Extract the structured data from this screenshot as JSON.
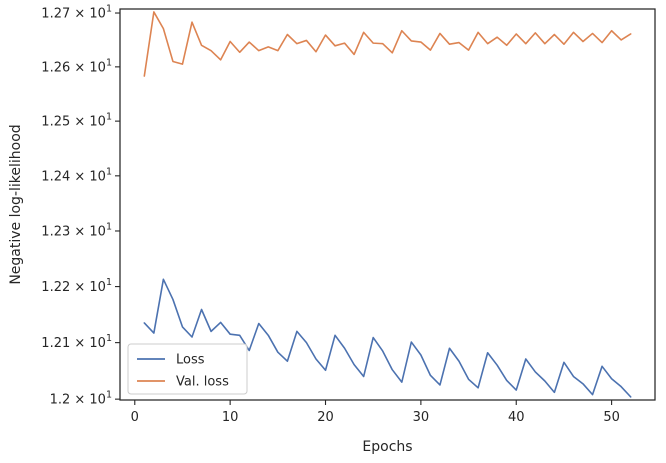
{
  "chart_data": {
    "type": "line",
    "xlabel": "Epochs",
    "ylabel": "Negative log-likelihood",
    "xlim": [
      -1.55,
      54.55
    ],
    "ylim": [
      11.9985,
      12.7075
    ],
    "yscale": "log",
    "xticks": [
      0,
      10,
      20,
      30,
      40,
      50
    ],
    "xtick_labels": [
      "0",
      "10",
      "20",
      "30",
      "40",
      "50"
    ],
    "yticks": [
      12.0,
      12.1,
      12.2,
      12.3,
      12.4,
      12.5,
      12.6,
      12.7
    ],
    "ytick_labels": [
      {
        "mantissa": "1.2",
        "exponent": "1"
      },
      {
        "mantissa": "1.21",
        "exponent": "1"
      },
      {
        "mantissa": "1.22",
        "exponent": "1"
      },
      {
        "mantissa": "1.23",
        "exponent": "1"
      },
      {
        "mantissa": "1.24",
        "exponent": "1"
      },
      {
        "mantissa": "1.25",
        "exponent": "1"
      },
      {
        "mantissa": "1.26",
        "exponent": "1"
      },
      {
        "mantissa": "1.27",
        "exponent": "1"
      }
    ],
    "grid": false,
    "legend_position": "lower-left",
    "x": [
      1,
      2,
      3,
      4,
      5,
      6,
      7,
      8,
      9,
      10,
      11,
      12,
      13,
      14,
      15,
      16,
      17,
      18,
      19,
      20,
      21,
      22,
      23,
      24,
      25,
      26,
      27,
      28,
      29,
      30,
      31,
      32,
      33,
      34,
      35,
      36,
      37,
      38,
      39,
      40,
      41,
      42,
      43,
      44,
      45,
      46,
      47,
      48,
      49,
      50,
      51,
      52
    ],
    "series": [
      {
        "name": "Loss",
        "color": "#4c72b0",
        "values": [
          12.135,
          12.117,
          12.213,
          12.177,
          12.128,
          12.11,
          12.159,
          12.12,
          12.136,
          12.115,
          12.113,
          12.086,
          12.134,
          12.113,
          12.083,
          12.067,
          12.12,
          12.1,
          12.071,
          12.051,
          12.113,
          12.09,
          12.061,
          12.04,
          12.109,
          12.085,
          12.052,
          12.03,
          12.101,
          12.078,
          12.042,
          12.025,
          12.09,
          12.067,
          12.035,
          12.02,
          12.082,
          12.06,
          12.033,
          12.016,
          12.071,
          12.048,
          12.032,
          12.012,
          12.065,
          12.04,
          12.027,
          12.008,
          12.058,
          12.036,
          12.022,
          12.004
        ]
      },
      {
        "name": "Val. loss",
        "color": "#dd8452",
        "values": [
          12.583,
          12.702,
          12.671,
          12.61,
          12.605,
          12.683,
          12.64,
          12.63,
          12.613,
          12.647,
          12.627,
          12.646,
          12.63,
          12.637,
          12.63,
          12.66,
          12.643,
          12.649,
          12.628,
          12.659,
          12.639,
          12.644,
          12.623,
          12.664,
          12.644,
          12.643,
          12.626,
          12.667,
          12.648,
          12.646,
          12.631,
          12.662,
          12.642,
          12.645,
          12.631,
          12.664,
          12.643,
          12.655,
          12.64,
          12.661,
          12.643,
          12.663,
          12.643,
          12.66,
          12.642,
          12.664,
          12.647,
          12.662,
          12.645,
          12.667,
          12.65,
          12.661
        ]
      }
    ]
  }
}
